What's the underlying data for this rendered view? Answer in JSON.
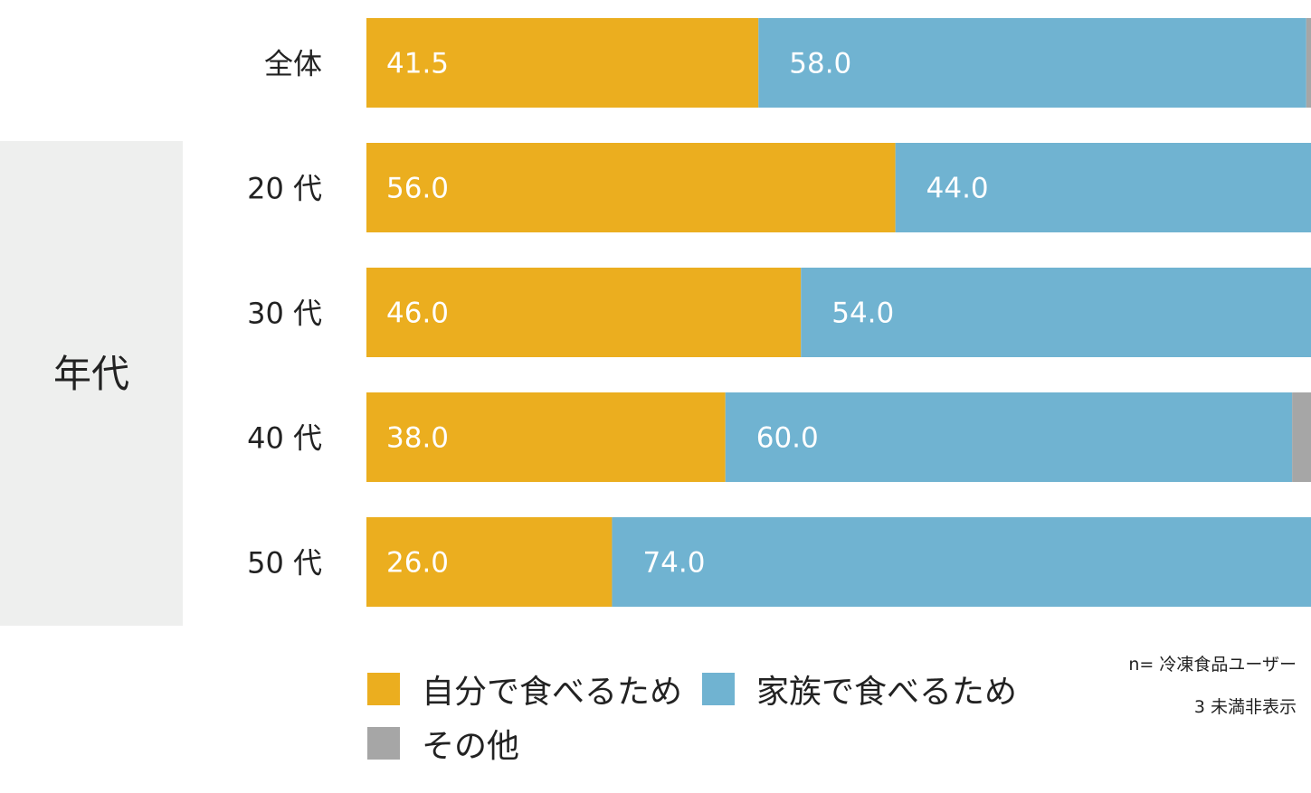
{
  "group_label": "年代",
  "notes": {
    "sample": "n= 冷凍食品ユーザー",
    "threshold": "3 未満非表示"
  },
  "colors": {
    "self": "#ebae1f",
    "family": "#70b3d1",
    "other": "#a6a6a6",
    "panel": "#eeefee"
  },
  "legend": [
    {
      "label": "自分で食べるため",
      "color": "#ebae1f"
    },
    {
      "label": "家族で食べるため",
      "color": "#70b3d1"
    },
    {
      "label": "その他",
      "color": "#a6a6a6"
    }
  ],
  "chart_data": {
    "type": "bar",
    "orientation": "horizontal",
    "stacked": true,
    "categories": [
      "全体",
      "20 代",
      "30 代",
      "40 代",
      "50 代"
    ],
    "series": [
      {
        "name": "自分で食べるため",
        "values": [
          41.5,
          56.0,
          46.0,
          38.0,
          26.0
        ],
        "color": "#ebae1f"
      },
      {
        "name": "家族で食べるため",
        "values": [
          58.0,
          44.0,
          54.0,
          60.0,
          74.0
        ],
        "color": "#70b3d1"
      },
      {
        "name": "その他",
        "values": [
          0.5,
          0,
          0,
          2.0,
          0
        ],
        "color": "#a6a6a6"
      }
    ],
    "value_labels": [
      [
        "41.5",
        "58.0",
        ""
      ],
      [
        "56.0",
        "44.0",
        ""
      ],
      [
        "46.0",
        "54.0",
        ""
      ],
      [
        "38.0",
        "60.0",
        ""
      ],
      [
        "26.0",
        "74.0",
        ""
      ]
    ],
    "xlim": [
      0,
      100
    ],
    "legend_position": "bottom",
    "grid": false
  }
}
